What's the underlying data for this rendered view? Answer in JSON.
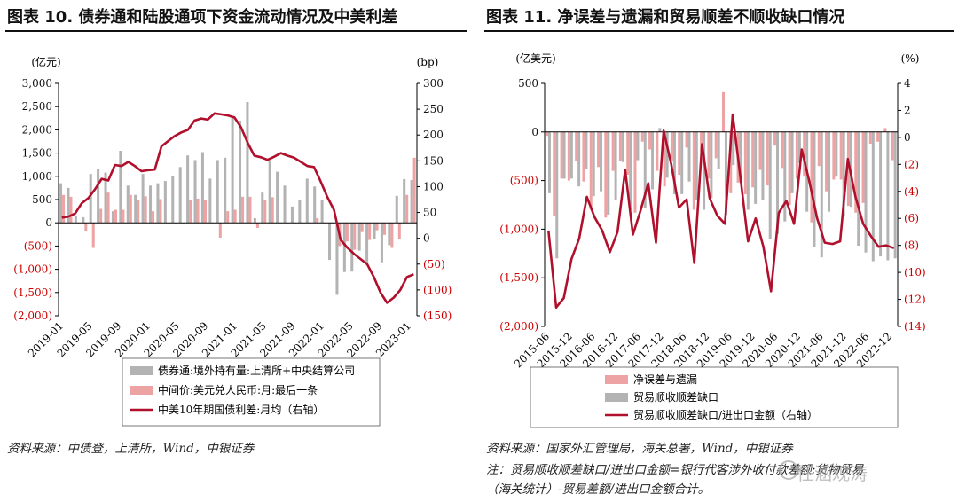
{
  "left": {
    "title": "图表 10. 债券通和陆股通项下资金流动情况及中美利差",
    "source": "资料来源：中债登，上清所，Wind，中银证券"
  },
  "right": {
    "title": "图表 11. 净误差与遗漏和贸易顺差不顺收缺口情况",
    "source": "资料来源：国家外汇管理局，海关总署，Wind，中银证券",
    "note_line1": "注：贸易顺收顺差缺口/进出口金额=银行代客涉外收付款差额:货物贸易",
    "note_line2": "（海关统计）-贸易差额/进出口金额合计。"
  },
  "watermark": "任涵观涛",
  "colors": {
    "gray": "#b3b3b3",
    "pink": "#eda3a3",
    "crimson": "#b0102c",
    "axis_red": "#cc0000"
  },
  "chart_data": [
    {
      "type": "bar",
      "ylabel": "(亿元)",
      "y2label": "(bp)",
      "ylim": [
        -2000,
        3000
      ],
      "y2lim": [
        -150,
        300
      ],
      "yticks": [
        "3,000",
        "2,500",
        "2,000",
        "1,500",
        "1,000",
        "500",
        "0",
        "(500)",
        "(1,000)",
        "(1,500)",
        "(2,000)"
      ],
      "y2ticks": [
        "300",
        "250",
        "200",
        "150",
        "100",
        "50",
        "0",
        "(50)",
        "(100)",
        "(150)"
      ],
      "xticks": [
        "2019-01",
        "2019-05",
        "2019-09",
        "2020-01",
        "2020-05",
        "2020-09",
        "2021-01",
        "2021-05",
        "2021-09",
        "2022-01",
        "2022-05",
        "2022-09",
        "2023-01"
      ],
      "legend": [
        "债券通:境外持有量:上清所+中央结算公司",
        "中间价:美元兑人民币:月:最后一条",
        "中美10年期国债利差:月均（右轴）"
      ],
      "series": [
        {
          "name": "债券通:境外持有量:上清所+中央结算公司",
          "values": [
            850,
            750,
            150,
            120,
            1050,
            1150,
            1080,
            250,
            1550,
            800,
            600,
            1050,
            800,
            850,
            900,
            1000,
            1200,
            1450,
            1350,
            1520,
            950,
            1350,
            1400,
            2300,
            2200,
            2600,
            100,
            650,
            1320,
            1100,
            800,
            350,
            480,
            950,
            780,
            500,
            -800,
            -1550,
            -1060,
            -1050,
            -600,
            -900,
            -350,
            -850,
            -480,
            580,
            940,
            920
          ],
          "axis": "left"
        },
        {
          "name": "中间价:美元兑人民币:月:最后一条",
          "values": [
            600,
            560,
            0,
            -170,
            -540,
            300,
            650,
            280,
            280,
            600,
            500,
            570,
            250,
            510,
            0,
            0,
            0,
            500,
            520,
            500,
            0,
            -320,
            250,
            280,
            560,
            560,
            -110,
            500,
            550,
            0,
            0,
            0,
            0,
            0,
            100,
            0,
            0,
            -500,
            -400,
            -580,
            -200,
            -370,
            -160,
            -260,
            -540,
            -360,
            600,
            1400
          ],
          "axis": "left"
        },
        {
          "name": "中美10年期国债利差:月均（右轴）",
          "values": [
            40,
            42,
            48,
            68,
            78,
            95,
            115,
            112,
            142,
            140,
            148,
            140,
            130,
            132,
            133,
            178,
            188,
            198,
            205,
            210,
            228,
            232,
            230,
            242,
            240,
            238,
            234,
            215,
            185,
            160,
            157,
            152,
            158,
            165,
            160,
            156,
            148,
            140,
            138,
            110,
            80,
            55,
            -3,
            -18,
            -30,
            -40,
            -50,
            -75,
            -105,
            -125,
            -115,
            -100,
            -75,
            -70
          ],
          "axis": "right"
        }
      ]
    },
    {
      "type": "bar",
      "ylabel": "(亿美元)",
      "y2label": "(%)",
      "ylim": [
        -2000,
        500
      ],
      "y2lim": [
        -14,
        4
      ],
      "yticks": [
        "500",
        "0",
        "(500)",
        "(1,000)",
        "(1,500)",
        "(2,000)"
      ],
      "y2ticks": [
        "4",
        "2",
        "0",
        "(2)",
        "(4)",
        "(6)",
        "(8)",
        "(10)",
        "(12)",
        "(14)"
      ],
      "xticks": [
        "2015-06",
        "2015-12",
        "2016-06",
        "2016-12",
        "2017-06",
        "2017-12",
        "2018-06",
        "2018-12",
        "2019-06",
        "2019-12",
        "2020-06",
        "2020-12",
        "2021-06",
        "2021-12",
        "2022-06",
        "2022-12"
      ],
      "legend": [
        "净误差与遗漏",
        "贸易顺收顺差缺口",
        "贸易顺收顺差缺口/进出口金额（右轴）"
      ],
      "series": [
        {
          "name": "净误差与遗漏",
          "values": [
            -40,
            -860,
            -480,
            -500,
            -300,
            -510,
            -800,
            -360,
            -880,
            -400,
            -300,
            -440,
            -830,
            -100,
            -180,
            -400,
            -560,
            -300,
            -440,
            -160,
            -800,
            -200,
            -480,
            -270,
            410,
            -630,
            -520,
            -640,
            -570,
            -390,
            -550,
            -140,
            -370,
            -750,
            -480,
            -460,
            -930,
            -350,
            -610,
            -490,
            -490,
            -760,
            -830,
            -730,
            -120,
            -100,
            40,
            -290
          ],
          "axis": "left"
        },
        {
          "name": "贸易顺收顺差缺口",
          "values": [
            -630,
            -1300,
            -480,
            -480,
            -560,
            -380,
            -660,
            -610,
            -850,
            -700,
            -310,
            -800,
            -290,
            -780,
            -590,
            40,
            -470,
            -640,
            -640,
            -510,
            -700,
            -800,
            -680,
            -380,
            -850,
            -340,
            -520,
            -800,
            -740,
            -700,
            -1100,
            -1050,
            -920,
            -630,
            -320,
            -820,
            -1180,
            -1290,
            -820,
            -460,
            -860,
            -770,
            -1170,
            -1240,
            -1330,
            -1280,
            -1320,
            -1300
          ],
          "axis": "left"
        },
        {
          "name": "贸易顺收顺差缺口/进出口金额（右轴）",
          "values": [
            -6.9,
            -12.6,
            -11.9,
            -9.0,
            -7.5,
            -4.4,
            -5.9,
            -6.9,
            -8.5,
            -7.0,
            -2.4,
            -7.2,
            -5.4,
            -3.4,
            -7.8,
            0.5,
            -2.0,
            -5.2,
            -4.6,
            -9.3,
            -0.5,
            -4.5,
            -5.8,
            -6.4,
            1.7,
            -2.9,
            -7.7,
            -6.0,
            -8.1,
            -11.4,
            -5.6,
            -4.7,
            -6.4,
            -0.9,
            -3.3,
            -6.0,
            -7.8,
            -7.9,
            -7.7,
            -1.6,
            -4.4,
            -6.4,
            -7.3,
            -8.1,
            -8.0,
            -8.2
          ],
          "axis": "right"
        }
      ]
    }
  ]
}
